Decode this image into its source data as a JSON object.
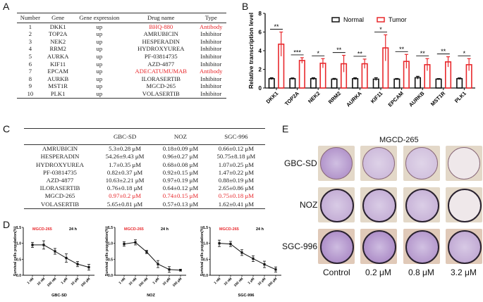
{
  "panels": {
    "A": "A",
    "B": "B",
    "C": "C",
    "D": "D",
    "E": "E"
  },
  "tableA": {
    "headers": [
      "Number",
      "Gene",
      "Gene expression",
      "Drug name",
      "Type"
    ],
    "rows": [
      {
        "number": "1",
        "gene": "DKK1",
        "expression": "up",
        "drug": "BHQ-880",
        "type": "Antibody",
        "highlight": true
      },
      {
        "number": "2",
        "gene": "TOP2A",
        "expression": "up",
        "drug": "AMRUBICIN",
        "type": "Inhibitor",
        "highlight": false
      },
      {
        "number": "3",
        "gene": "NEK2",
        "expression": "up",
        "drug": "HESPERADIN",
        "type": "Inhibitor",
        "highlight": false
      },
      {
        "number": "4",
        "gene": "RRM2",
        "expression": "up",
        "drug": "HYDROXYUREA",
        "type": "Inhibitor",
        "highlight": false
      },
      {
        "number": "5",
        "gene": "AURKA",
        "expression": "up",
        "drug": "PF-03814735",
        "type": "Inhibitor",
        "highlight": false
      },
      {
        "number": "6",
        "gene": "KIF11",
        "expression": "up",
        "drug": "AZD-4877",
        "type": "Inhibitor",
        "highlight": false
      },
      {
        "number": "7",
        "gene": "EPCAM",
        "expression": "up",
        "drug": "ADECATUMUMAB",
        "type": "Antibody",
        "highlight": true
      },
      {
        "number": "8",
        "gene": "AURKB",
        "expression": "up",
        "drug": "ILORASERTIB",
        "type": "Inhibitor",
        "highlight": false
      },
      {
        "number": "9",
        "gene": "MST1R",
        "expression": "up",
        "drug": "MGCD-265",
        "type": "Inhibitor",
        "highlight": false
      },
      {
        "number": "10",
        "gene": "PLK1",
        "expression": "up",
        "drug": "VOLASERTIB",
        "type": "Inhibitor",
        "highlight": false
      }
    ]
  },
  "tableC": {
    "headers": [
      "",
      "GBC-SD",
      "NOZ",
      "SGC-996"
    ],
    "rows": [
      {
        "drug": "AMRUBICIN",
        "gbcsd": "5.3±0.28 μM",
        "noz": "0.18±0.09 μM",
        "sgc996": "0.66±0.12 μM",
        "highlight": false
      },
      {
        "drug": "HESPERADIN",
        "gbcsd": "54.26±9.43 μM",
        "noz": "0.96±0.27 μM",
        "sgc996": "50.75±8.18 μM",
        "highlight": false
      },
      {
        "drug": "HYDROXYUREA",
        "gbcsd": "1.7±0.35 μM",
        "noz": "0.68±0.08 μM",
        "sgc996": "1.07±0.25 μM",
        "highlight": false
      },
      {
        "drug": "PF-03814735",
        "gbcsd": "0.82±0.37 μM",
        "noz": "0.92±0.15 μM",
        "sgc996": "1.47±0.22 μM",
        "highlight": false
      },
      {
        "drug": "AZD-4877",
        "gbcsd": "10.63±2.21 μM",
        "noz": "0.97±0.19 μM",
        "sgc996": "0.88±0.19 μM",
        "highlight": false
      },
      {
        "drug": "ILORASERTIB",
        "gbcsd": "0.76±0.18 μM",
        "noz": "0.64±0.12 μM",
        "sgc996": "2.65±0.86 μM",
        "highlight": false
      },
      {
        "drug": "MGCD-265",
        "gbcsd": "0.97±0.2 μM",
        "noz": "0.74±0.15 μM",
        "sgc996": "0.75±0.18 μM",
        "highlight": true
      },
      {
        "drug": "VOLASERTIB",
        "gbcsd": "5.65±0.81 μM",
        "noz": "0.57±0.13 μM",
        "sgc996": "1.62±0.41 μM",
        "highlight": false
      }
    ]
  },
  "colors": {
    "normal": "#111111",
    "tumor": "#e8282c",
    "highlight": "#e8282c"
  },
  "chart_data": [
    {
      "id": "B",
      "type": "bar",
      "title": "",
      "xlabel": "",
      "ylabel": "Relative transcription level",
      "ylim": [
        0,
        8
      ],
      "yticks": [
        0,
        2,
        4,
        6,
        8
      ],
      "legend": {
        "position": "top-right",
        "entries": [
          "Normal",
          "Tumor"
        ]
      },
      "categories": [
        "DKK1",
        "TOP2A",
        "NEK2",
        "RRM2",
        "AURKA",
        "KIF11",
        "EPCAM",
        "AURKB",
        "MST1R",
        "PLK1"
      ],
      "series": [
        {
          "name": "Normal",
          "values": [
            1.0,
            1.0,
            1.0,
            0.95,
            1.0,
            0.95,
            0.95,
            1.1,
            0.95,
            1.0
          ],
          "errors": [
            0.1,
            0.08,
            0.1,
            0.08,
            0.1,
            0.15,
            0.07,
            0.15,
            0.06,
            0.08
          ]
        },
        {
          "name": "Tumor",
          "values": [
            4.7,
            2.95,
            2.65,
            2.6,
            2.6,
            4.3,
            2.85,
            2.5,
            2.8,
            2.5
          ],
          "errors": [
            1.3,
            0.3,
            0.5,
            0.9,
            0.5,
            1.4,
            0.75,
            0.65,
            0.55,
            0.65
          ]
        }
      ],
      "significance": [
        "**",
        "***",
        "*",
        "**",
        "**",
        "*",
        "**",
        "**",
        "**",
        "*"
      ]
    },
    {
      "id": "D1",
      "type": "line",
      "title": "MGCD-265",
      "annotation": "24 h",
      "xlabel": "GBC-SD",
      "ylabel": "Survival cells population(%)",
      "ylim": [
        0,
        1.5
      ],
      "yticks": [
        "0.0",
        "0.5",
        "1.0",
        "1.5"
      ],
      "x": [
        "1 nM",
        "10 nM",
        "100 nM",
        "1 μM",
        "10 μM",
        "100 μM"
      ],
      "values": [
        0.95,
        0.95,
        0.75,
        0.54,
        0.35,
        0.25
      ],
      "errors": [
        0.08,
        0.13,
        0.09,
        0.13,
        0.08,
        0.09
      ]
    },
    {
      "id": "D2",
      "type": "line",
      "title": "MGCD-265",
      "annotation": "24 h",
      "xlabel": "NOZ",
      "ylabel": "Survival cells population(%)",
      "ylim": [
        0,
        1.5
      ],
      "yticks": [
        "0.0",
        "0.5",
        "1.0",
        "1.5"
      ],
      "x": [
        "1 nM",
        "10 nM",
        "100 nM",
        "1 μM",
        "10 μM",
        "100 μM"
      ],
      "values": [
        0.98,
        1.03,
        0.73,
        0.35,
        0.18,
        0.16
      ],
      "errors": [
        0.07,
        0.08,
        0.05,
        0.11,
        0.09,
        0.03
      ]
    },
    {
      "id": "D3",
      "type": "line",
      "title": "MGCD-265",
      "annotation": "24 h",
      "xlabel": "SGC-996",
      "ylabel": "Survival cells population(%)",
      "ylim": [
        0,
        1.5
      ],
      "yticks": [
        "0.0",
        "0.5",
        "1.0",
        "1.5"
      ],
      "x": [
        "1 nM",
        "10 nM",
        "100 nM",
        "1 μM",
        "10 μM",
        "100 μM"
      ],
      "values": [
        1.0,
        0.98,
        0.71,
        0.52,
        0.34,
        0.18
      ],
      "errors": [
        0.1,
        0.08,
        0.09,
        0.09,
        0.1,
        0.08
      ]
    }
  ],
  "panelE": {
    "title": "MGCD-265",
    "rows": [
      "GBC-SD",
      "NOZ",
      "SGC-996"
    ],
    "columns": [
      "Control",
      "0.2 μM",
      "0.8 μM",
      "3.2 μM"
    ],
    "colony_density": [
      [
        0.9,
        0.35,
        0.25,
        0.0
      ],
      [
        0.55,
        0.5,
        0.45,
        0.0
      ],
      [
        1.0,
        1.0,
        0.85,
        0.6
      ]
    ]
  }
}
